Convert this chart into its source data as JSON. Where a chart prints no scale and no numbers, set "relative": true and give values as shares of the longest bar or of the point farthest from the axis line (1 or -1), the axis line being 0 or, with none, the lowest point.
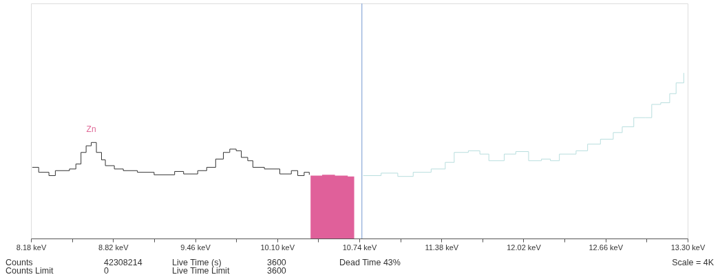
{
  "chart_data": {
    "type": "step",
    "relative": true,
    "grid": false,
    "xlim": [
      8.18,
      13.3
    ],
    "xticks": [
      {
        "value": 8.18,
        "label": "8.18 keV"
      },
      {
        "value": 8.5,
        "label": null
      },
      {
        "value": 8.82,
        "label": "8.82 keV"
      },
      {
        "value": 9.14,
        "label": null
      },
      {
        "value": 9.46,
        "label": "9.46 keV"
      },
      {
        "value": 9.78,
        "label": null
      },
      {
        "value": 10.1,
        "label": "10.10 keV"
      },
      {
        "value": 10.42,
        "label": null
      },
      {
        "value": 10.74,
        "label": "10.74 keV"
      },
      {
        "value": 11.06,
        "label": null
      },
      {
        "value": 11.38,
        "label": "11.38 keV"
      },
      {
        "value": 11.7,
        "label": null
      },
      {
        "value": 12.02,
        "label": "12.02 keV"
      },
      {
        "value": 12.34,
        "label": null
      },
      {
        "value": 12.66,
        "label": "12.66 keV"
      },
      {
        "value": 12.98,
        "label": null
      },
      {
        "value": 13.3,
        "label": "13.30 keV"
      }
    ],
    "series": [
      {
        "color": "#333333",
        "x": [
          8.19,
          8.24,
          8.32,
          8.37,
          8.48,
          8.53,
          8.57,
          8.61,
          8.65,
          8.69,
          8.73,
          8.76,
          8.83,
          8.9,
          9.01,
          9.14,
          9.3,
          9.37,
          9.48,
          9.55,
          9.62,
          9.68,
          9.73,
          9.78,
          9.82,
          9.87,
          9.91,
          10.0,
          10.12,
          10.21,
          10.26,
          10.31,
          10.35
        ],
        "values": [
          0.43,
          0.4,
          0.38,
          0.41,
          0.42,
          0.45,
          0.52,
          0.56,
          0.58,
          0.52,
          0.475,
          0.44,
          0.42,
          0.41,
          0.4,
          0.385,
          0.405,
          0.39,
          0.41,
          0.43,
          0.48,
          0.52,
          0.54,
          0.53,
          0.49,
          0.47,
          0.43,
          0.42,
          0.39,
          0.41,
          0.38,
          0.4,
          0.385
        ]
      },
      {
        "type": "area",
        "color": "#e0609a",
        "x": [
          10.36,
          10.45,
          10.55,
          10.65,
          10.7
        ],
        "values": [
          0.38,
          0.385,
          0.38,
          0.375,
          0.375
        ]
      },
      {
        "color": "#b8dede",
        "x": [
          10.77,
          10.91,
          11.04,
          11.16,
          11.3,
          11.41,
          11.48,
          11.59,
          11.68,
          11.75,
          11.87,
          11.96,
          12.06,
          12.16,
          12.23,
          12.3,
          12.43,
          12.52,
          12.62,
          12.72,
          12.79,
          12.88,
          12.97,
          13.02,
          13.09,
          13.16,
          13.21,
          13.27
        ],
        "values": [
          0.38,
          0.395,
          0.375,
          0.4,
          0.42,
          0.46,
          0.52,
          0.53,
          0.51,
          0.47,
          0.51,
          0.525,
          0.47,
          0.48,
          0.47,
          0.51,
          0.53,
          0.57,
          0.6,
          0.64,
          0.675,
          0.73,
          0.73,
          0.81,
          0.82,
          0.875,
          0.94,
          1.0
        ]
      }
    ],
    "ref_lines": [
      {
        "axis": "x",
        "value": 10.76,
        "color": "#8aa8d8"
      }
    ],
    "annotations": [
      {
        "text": "Zn",
        "x": 8.65,
        "y": 0.58
      },
      "Counts",
      "42308214",
      "Live Time (s)",
      "3600",
      "Dead Time  43%",
      "Scale = 4K",
      "Counts Limit",
      "0",
      "Live Time Limit",
      "3600"
    ]
  }
}
